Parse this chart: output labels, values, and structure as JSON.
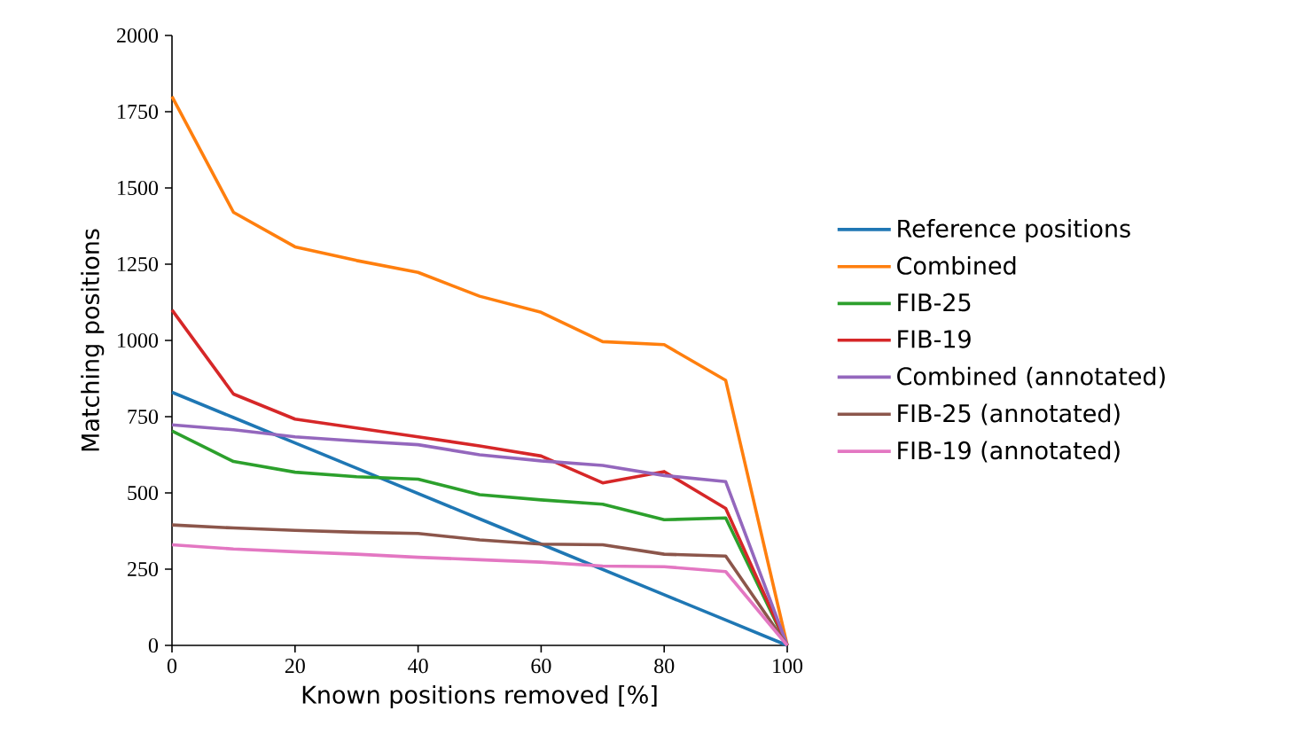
{
  "chart_data": {
    "type": "line",
    "xlabel": "Known positions removed [%]",
    "ylabel": "Matching positions",
    "x": [
      0,
      10,
      20,
      30,
      40,
      50,
      60,
      70,
      80,
      90,
      100
    ],
    "xlim": [
      0,
      100
    ],
    "ylim": [
      0,
      2000
    ],
    "xticks": [
      0,
      20,
      40,
      60,
      80,
      100
    ],
    "yticks": [
      0,
      250,
      500,
      750,
      1000,
      1250,
      1500,
      1750,
      2000
    ],
    "legend": "right",
    "series": [
      {
        "name": "Reference positions",
        "color": "#1f77b4",
        "values": [
          830,
          747,
          664,
          581,
          498,
          415,
          332,
          249,
          166,
          83,
          0
        ]
      },
      {
        "name": "Combined",
        "color": "#ff7f0e",
        "values": [
          1800,
          1420,
          1307,
          1262,
          1223,
          1145,
          1092,
          996,
          986,
          869,
          0
        ]
      },
      {
        "name": "FIB-25",
        "color": "#2ca02c",
        "values": [
          703,
          603,
          568,
          553,
          545,
          494,
          477,
          463,
          412,
          418,
          0
        ]
      },
      {
        "name": "FIB-19",
        "color": "#d62728",
        "values": [
          1100,
          824,
          742,
          713,
          684,
          654,
          621,
          533,
          570,
          449,
          0
        ]
      },
      {
        "name": "Combined (annotated)",
        "color": "#9467bd",
        "values": [
          723,
          707,
          684,
          670,
          658,
          625,
          605,
          590,
          557,
          537,
          0
        ]
      },
      {
        "name": "FIB-25 (annotated)",
        "color": "#8c564b",
        "values": [
          395,
          385,
          377,
          371,
          367,
          346,
          332,
          330,
          299,
          293,
          0
        ]
      },
      {
        "name": "FIB-19 (annotated)",
        "color": "#e377c2",
        "values": [
          330,
          316,
          307,
          299,
          289,
          281,
          273,
          260,
          258,
          242,
          0
        ]
      }
    ]
  }
}
